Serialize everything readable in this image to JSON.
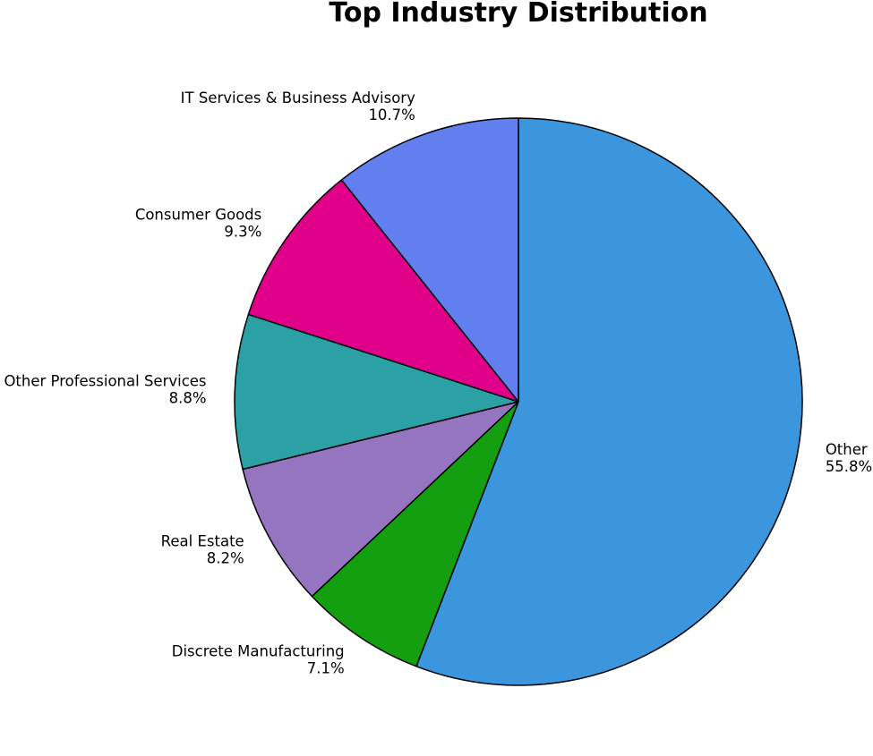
{
  "chart_data": {
    "type": "pie",
    "title": "Top Industry Distribution",
    "categories": [
      "Other",
      "Discrete Manufacturing",
      "Real Estate",
      "Other Professional Services",
      "Consumer Goods",
      "IT Services & Business Advisory"
    ],
    "values": [
      55.8,
      7.1,
      8.2,
      8.8,
      9.3,
      10.7
    ],
    "value_labels": [
      "55.8%",
      "7.1%",
      "8.2%",
      "8.8%",
      "9.3%",
      "10.7%"
    ],
    "colors": [
      "#3b96dd",
      "#139f10",
      "#9575c0",
      "#2ca1a5",
      "#e0008a",
      "#627ff0"
    ]
  }
}
